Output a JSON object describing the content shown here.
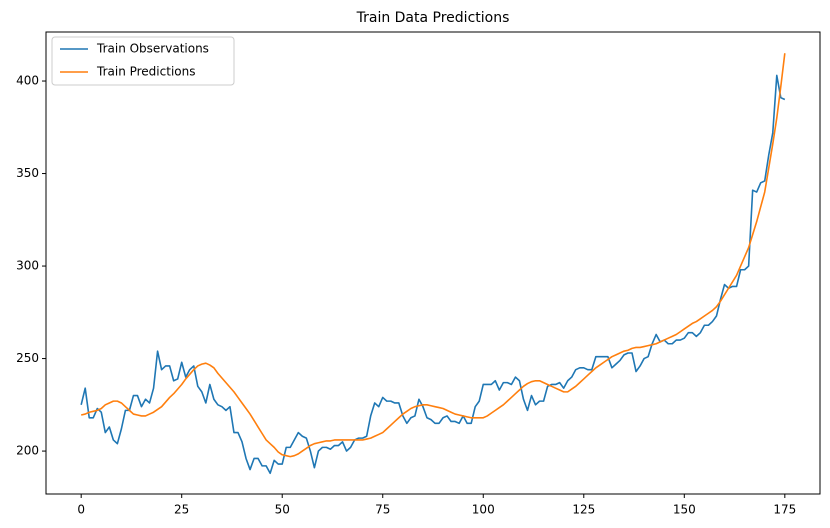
{
  "chart_data": {
    "type": "line",
    "title": "Train Data Predictions",
    "x": [
      0,
      1,
      2,
      3,
      4,
      5,
      6,
      7,
      8,
      9,
      10,
      11,
      12,
      13,
      14,
      15,
      16,
      17,
      18,
      19,
      20,
      21,
      22,
      23,
      24,
      25,
      26,
      27,
      28,
      29,
      30,
      31,
      32,
      33,
      34,
      35,
      36,
      37,
      38,
      39,
      40,
      41,
      42,
      43,
      44,
      45,
      46,
      47,
      48,
      49,
      50,
      51,
      52,
      53,
      54,
      55,
      56,
      57,
      58,
      59,
      60,
      61,
      62,
      63,
      64,
      65,
      66,
      67,
      68,
      69,
      70,
      71,
      72,
      73,
      74,
      75,
      76,
      77,
      78,
      79,
      80,
      81,
      82,
      83,
      84,
      85,
      86,
      87,
      88,
      89,
      90,
      91,
      92,
      93,
      94,
      95,
      96,
      97,
      98,
      99,
      100,
      101,
      102,
      103,
      104,
      105,
      106,
      107,
      108,
      109,
      110,
      111,
      112,
      113,
      114,
      115,
      116,
      117,
      118,
      119,
      120,
      121,
      122,
      123,
      124,
      125,
      126,
      127,
      128,
      129,
      130,
      131,
      132,
      133,
      134,
      135,
      136,
      137,
      138,
      139,
      140,
      141,
      142,
      143,
      144,
      145,
      146,
      147,
      148,
      149,
      150,
      151,
      152,
      153,
      154,
      155,
      156,
      157,
      158,
      159,
      160,
      161,
      162,
      163,
      164,
      165,
      166,
      167,
      168,
      169,
      170,
      171,
      172,
      173,
      174,
      175
    ],
    "series": [
      {
        "name": "Train Observations",
        "color": "#1f77b4",
        "values": [
          225,
          234,
          218,
          218,
          223,
          221,
          210,
          213,
          206,
          204,
          212,
          222,
          222,
          230,
          230,
          224,
          228,
          226,
          234,
          254,
          244,
          246,
          246,
          238,
          239,
          248,
          240,
          244,
          246,
          235,
          232,
          226,
          236,
          228,
          225,
          224,
          222,
          224,
          210,
          210,
          205,
          196,
          190,
          196,
          196,
          192,
          192,
          188,
          195,
          193,
          193,
          202,
          202,
          206,
          210,
          208,
          207,
          200,
          191,
          200,
          202,
          202,
          201,
          203,
          203,
          205,
          200,
          202,
          206,
          207,
          207,
          208,
          219,
          226,
          224,
          229,
          227,
          227,
          226,
          226,
          219,
          215,
          218,
          219,
          228,
          224,
          218,
          217,
          215,
          215,
          218,
          219,
          216,
          216,
          215,
          219,
          215,
          215,
          224,
          227,
          236,
          236,
          236,
          238,
          233,
          237,
          237,
          236,
          240,
          238,
          228,
          222,
          230,
          225,
          227,
          227,
          235,
          236,
          236,
          237,
          234,
          238,
          240,
          244,
          245,
          245,
          244,
          244,
          251,
          251,
          251,
          251,
          245,
          247,
          249,
          252,
          253,
          253,
          243,
          246,
          250,
          251,
          258,
          263,
          259,
          260,
          258,
          258,
          260,
          260,
          261,
          264,
          264,
          262,
          264,
          268,
          268,
          270,
          273,
          282,
          290,
          288,
          289,
          289,
          298,
          298,
          300,
          341,
          340,
          345,
          346,
          360,
          372,
          403,
          391,
          390
        ]
      },
      {
        "name": "Train Predictions",
        "color": "#ff7f0e",
        "values": [
          219.5,
          220,
          221,
          221.5,
          222,
          223,
          225,
          226,
          227,
          227,
          226,
          224,
          222,
          220,
          219.5,
          219,
          219,
          220,
          221,
          222.5,
          224,
          226.5,
          229,
          231,
          233.5,
          236,
          239,
          241.5,
          244,
          246,
          247,
          247.5,
          246.5,
          245,
          242,
          239.5,
          237,
          234.5,
          232,
          229,
          226,
          223,
          220,
          216.5,
          213,
          209.5,
          206,
          204,
          202,
          199.5,
          198,
          197.5,
          197,
          197.5,
          198.5,
          200,
          201.5,
          203,
          204,
          204.5,
          205,
          205.5,
          205.5,
          206,
          206,
          206,
          206,
          206,
          206,
          206,
          206,
          206.5,
          207,
          208,
          209,
          210,
          212,
          214,
          216,
          218,
          220,
          221.5,
          223,
          224,
          224.5,
          225,
          225,
          224.5,
          224,
          223.5,
          223,
          222,
          221,
          220,
          219.5,
          219,
          218.5,
          218,
          218,
          218,
          218,
          219,
          220.5,
          222,
          223.5,
          225,
          227,
          229,
          231,
          233,
          235,
          236.5,
          237.5,
          238,
          238,
          237,
          236,
          235,
          234,
          233,
          232,
          232,
          233.5,
          235,
          237,
          239,
          241,
          243,
          245,
          246.5,
          248,
          249.5,
          251,
          252,
          253,
          254,
          254.5,
          255.5,
          256,
          256,
          256.5,
          257,
          257.5,
          258,
          259,
          260,
          261,
          262,
          263,
          264.5,
          266,
          267.5,
          269,
          270,
          271.5,
          273,
          274.5,
          276,
          278,
          281,
          284.5,
          288,
          291.5,
          295,
          300,
          305,
          310,
          317,
          324,
          332,
          340,
          353,
          366,
          380,
          397,
          415
        ]
      }
    ],
    "xlim": [
      -8.75,
      183.75
    ],
    "xticks": [
      0,
      25,
      50,
      75,
      100,
      125,
      150,
      175
    ],
    "ylim": [
      176.8,
      426.5
    ],
    "yticks": [
      200,
      250,
      300,
      350,
      400
    ],
    "grid": false,
    "legend": "upper-left"
  }
}
